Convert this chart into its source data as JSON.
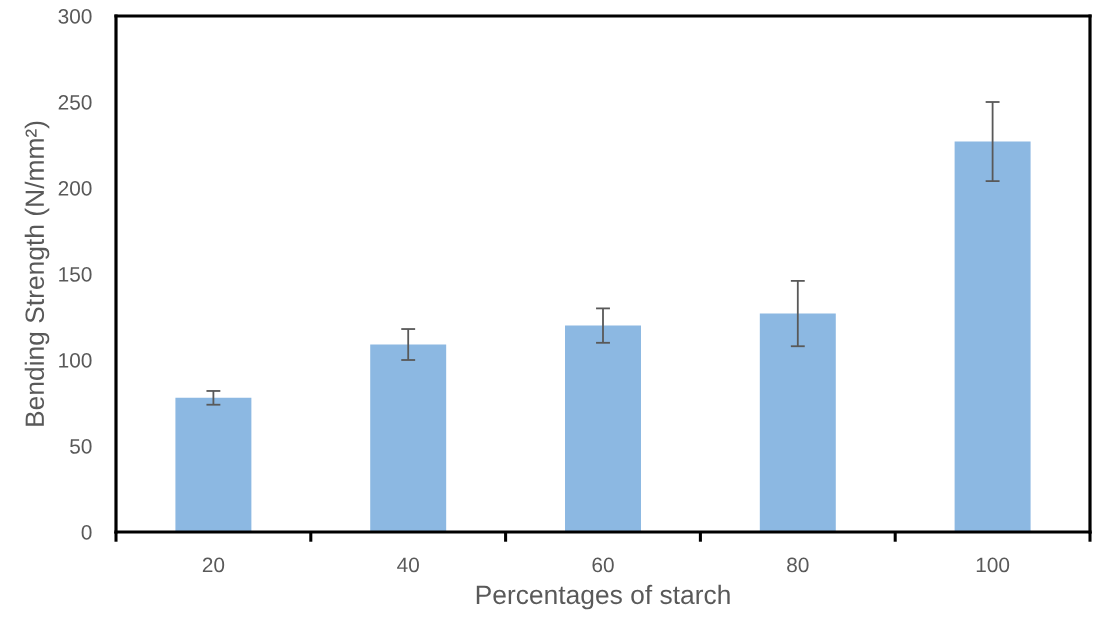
{
  "chart_data": {
    "type": "bar",
    "xlabel": "Percentages of starch",
    "ylabel": "Bending Strength (N/mm²)",
    "categories": [
      "20",
      "40",
      "60",
      "80",
      "100"
    ],
    "values": [
      78,
      109,
      120,
      127,
      227
    ],
    "errors": [
      4,
      9,
      10,
      19,
      23
    ],
    "color": "#8cb8e2",
    "ylim": [
      0,
      300
    ],
    "yticks": [
      0,
      50,
      100,
      150,
      200,
      250,
      300
    ],
    "grid": false
  }
}
